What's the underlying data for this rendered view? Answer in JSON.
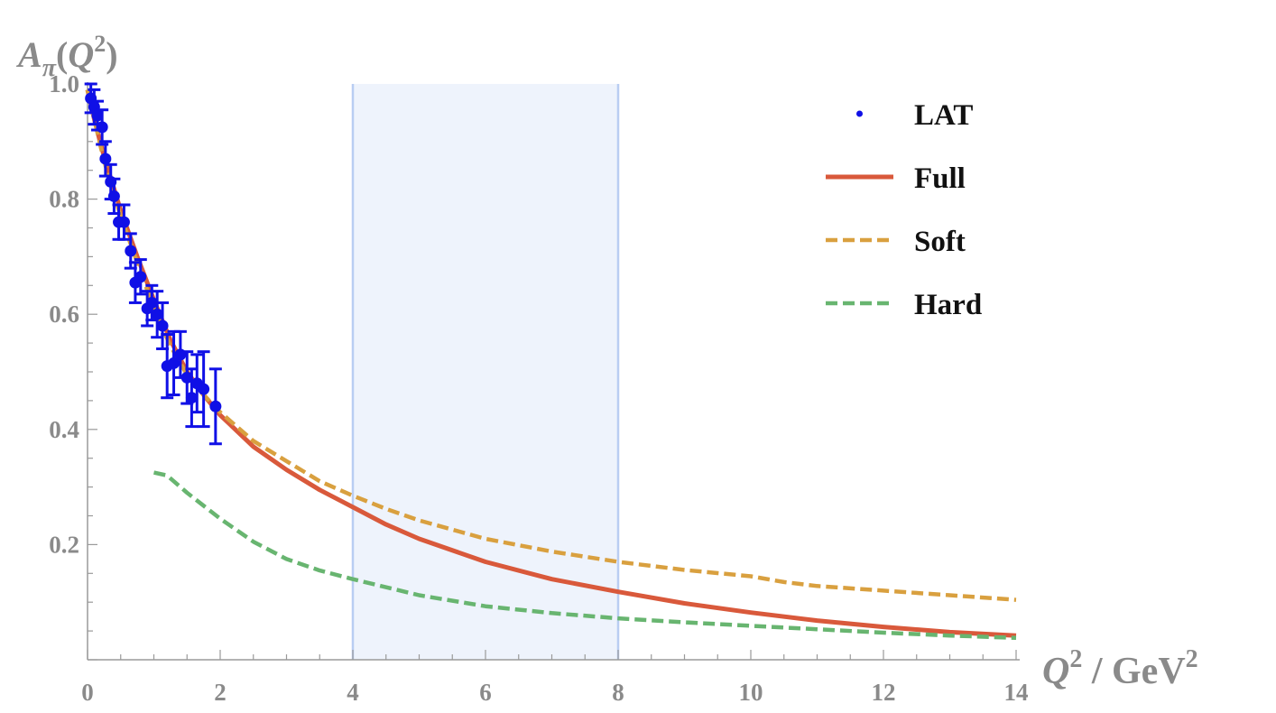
{
  "chart_data": {
    "type": "line",
    "title": "",
    "xlabel": {
      "base": "Q",
      "sup": "2",
      "unit": " / GeV",
      "unit_sup": "2"
    },
    "ylabel": {
      "base": "A",
      "sub": "π",
      "open": "(",
      "arg": "Q",
      "sup": "2",
      "close": ")"
    },
    "xlim": [
      0,
      14
    ],
    "ylim": [
      0,
      1.0
    ],
    "x_ticks": [
      "0",
      "2",
      "4",
      "6",
      "8",
      "10",
      "12",
      "14"
    ],
    "y_ticks": [
      "0.2",
      "0.4",
      "0.6",
      "0.8",
      "1.0"
    ],
    "grid": false,
    "legend_position": "top-right",
    "shaded_region": {
      "x": [
        4,
        8
      ],
      "color": "#eef3fc",
      "edge_color": "#b9cdf2"
    },
    "series": [
      {
        "name": "Full",
        "style": "solid",
        "color": "#d9593b",
        "x": [
          0,
          0.1,
          0.2,
          0.3,
          0.5,
          0.75,
          1.0,
          1.25,
          1.5,
          1.75,
          2.0,
          2.5,
          3.0,
          3.5,
          4.0,
          4.5,
          5.0,
          6.0,
          7.0,
          8.0,
          9.0,
          10.0,
          11.0,
          12.0,
          13.0,
          14.0
        ],
        "y": [
          0.99,
          0.94,
          0.895,
          0.855,
          0.78,
          0.7,
          0.625,
          0.555,
          0.5,
          0.46,
          0.425,
          0.37,
          0.33,
          0.295,
          0.265,
          0.235,
          0.21,
          0.17,
          0.14,
          0.118,
          0.098,
          0.082,
          0.068,
          0.057,
          0.048,
          0.042
        ]
      },
      {
        "name": "Soft",
        "style": "dashed",
        "color": "#d9a03f",
        "x": [
          0,
          0.1,
          0.2,
          0.3,
          0.5,
          0.75,
          1.0,
          1.25,
          1.5,
          1.75,
          2.0,
          2.5,
          3.0,
          3.5,
          4.0,
          4.5,
          5.0,
          6.0,
          7.0,
          8.0,
          9.0,
          10.0,
          10.5,
          11.0,
          12.0,
          13.0,
          14.0
        ],
        "y": [
          0.99,
          0.94,
          0.89,
          0.845,
          0.77,
          0.69,
          0.61,
          0.545,
          0.495,
          0.46,
          0.43,
          0.38,
          0.345,
          0.31,
          0.285,
          0.262,
          0.242,
          0.21,
          0.188,
          0.17,
          0.156,
          0.145,
          0.135,
          0.128,
          0.12,
          0.112,
          0.104
        ]
      },
      {
        "name": "Hard",
        "style": "dashed",
        "color": "#68b570",
        "x": [
          1.0,
          1.2,
          1.5,
          2.0,
          2.5,
          3.0,
          3.5,
          4.0,
          5.0,
          6.0,
          7.0,
          8.0,
          9.0,
          10.0,
          11.0,
          12.0,
          13.0,
          14.0
        ],
        "y": [
          0.325,
          0.32,
          0.29,
          0.245,
          0.205,
          0.175,
          0.155,
          0.14,
          0.112,
          0.093,
          0.081,
          0.072,
          0.065,
          0.059,
          0.053,
          0.047,
          0.042,
          0.038
        ]
      }
    ],
    "points": {
      "name": "LAT",
      "color": "#1010e6",
      "x": [
        0.05,
        0.1,
        0.15,
        0.22,
        0.27,
        0.35,
        0.4,
        0.47,
        0.55,
        0.65,
        0.72,
        0.8,
        0.9,
        0.97,
        1.05,
        1.13,
        1.2,
        1.3,
        1.4,
        1.5,
        1.57,
        1.65,
        1.75,
        1.93
      ],
      "y": [
        0.975,
        0.96,
        0.945,
        0.925,
        0.87,
        0.83,
        0.805,
        0.76,
        0.76,
        0.71,
        0.655,
        0.665,
        0.61,
        0.62,
        0.6,
        0.58,
        0.51,
        0.515,
        0.53,
        0.49,
        0.455,
        0.48,
        0.47,
        0.44
      ],
      "err": [
        0.025,
        0.03,
        0.025,
        0.03,
        0.03,
        0.03,
        0.03,
        0.03,
        0.03,
        0.03,
        0.035,
        0.03,
        0.03,
        0.03,
        0.04,
        0.04,
        0.055,
        0.055,
        0.04,
        0.045,
        0.05,
        0.05,
        0.065,
        0.065
      ]
    }
  }
}
